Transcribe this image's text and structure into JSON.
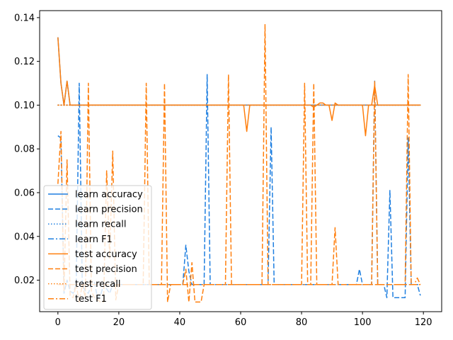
{
  "chart_data": {
    "type": "line",
    "title": "",
    "xlabel": "",
    "ylabel": "",
    "xlim": [
      -6,
      126
    ],
    "ylim": [
      0.0056,
      0.1432
    ],
    "x_ticks": [
      0,
      20,
      40,
      60,
      80,
      100,
      120
    ],
    "x_tick_labels": [
      "0",
      "20",
      "40",
      "60",
      "80",
      "100",
      "120"
    ],
    "y_ticks": [
      0.02,
      0.04,
      0.06,
      0.08,
      0.1,
      0.12,
      0.14
    ],
    "y_tick_labels": [
      "0.02",
      "0.04",
      "0.06",
      "0.08",
      "0.10",
      "0.12",
      "0.14"
    ],
    "grid": false,
    "legend_position": "lower-left",
    "colors": {
      "learn": "#1f7fe0",
      "test": "#ff7f0e"
    },
    "series": [
      {
        "name": "learn accuracy",
        "group": "learn",
        "style": "solid",
        "values": [
          0.131,
          0.11,
          0.1,
          0.111,
          0.1,
          0.1,
          0.1,
          0.1,
          0.1,
          0.1,
          0.1,
          0.1,
          0.1,
          0.1,
          0.1,
          0.1,
          0.1,
          0.1,
          0.1,
          0.1,
          0.1,
          0.1,
          0.1,
          0.1,
          0.1,
          0.1,
          0.1,
          0.1,
          0.1,
          0.1,
          0.1,
          0.1,
          0.1,
          0.1,
          0.1,
          0.1,
          0.1,
          0.1,
          0.1,
          0.1,
          0.1,
          0.1,
          0.1,
          0.1,
          0.1,
          0.1,
          0.1,
          0.1,
          0.1,
          0.1,
          0.1,
          0.1,
          0.1,
          0.1,
          0.1,
          0.1,
          0.1,
          0.1,
          0.1,
          0.1,
          0.1,
          0.1,
          0.1,
          0.1,
          0.1,
          0.1,
          0.1,
          0.1,
          0.1,
          0.1,
          0.1,
          0.1,
          0.1,
          0.1,
          0.1,
          0.1,
          0.1,
          0.1,
          0.1,
          0.1,
          0.1,
          0.1,
          0.1,
          0.1,
          0.1,
          0.1,
          0.1,
          0.1,
          0.1,
          0.1,
          0.1,
          0.1,
          0.1,
          0.1,
          0.1,
          0.1,
          0.1,
          0.1,
          0.1,
          0.1,
          0.1,
          0.1,
          0.1,
          0.1,
          0.1,
          0.1,
          0.1,
          0.1,
          0.1,
          0.1,
          0.1,
          0.1,
          0.1,
          0.1,
          0.1,
          0.1,
          0.1,
          0.1,
          0.1,
          0.1
        ]
      },
      {
        "name": "learn precision",
        "group": "learn",
        "style": "dashed",
        "values": [
          0.086,
          0.085,
          0.014,
          0.02,
          0.015,
          0.014,
          0.018,
          0.11,
          0.018,
          0.015,
          0.014,
          0.018,
          0.019,
          0.012,
          0.013,
          0.018,
          0.016,
          0.014,
          0.018,
          0.018,
          0.018,
          0.018,
          0.018,
          0.018,
          0.018,
          0.018,
          0.018,
          0.018,
          0.018,
          0.018,
          0.018,
          0.018,
          0.018,
          0.018,
          0.018,
          0.018,
          0.018,
          0.018,
          0.018,
          0.018,
          0.018,
          0.018,
          0.036,
          0.024,
          0.018,
          0.018,
          0.018,
          0.018,
          0.018,
          0.114,
          0.018,
          0.018,
          0.018,
          0.018,
          0.018,
          0.018,
          0.018,
          0.018,
          0.018,
          0.018,
          0.018,
          0.018,
          0.018,
          0.018,
          0.018,
          0.018,
          0.018,
          0.018,
          0.018,
          0.018,
          0.09,
          0.018,
          0.018,
          0.018,
          0.018,
          0.018,
          0.018,
          0.018,
          0.018,
          0.018,
          0.018,
          0.018,
          0.018,
          0.018,
          0.018,
          0.018,
          0.018,
          0.018,
          0.018,
          0.018,
          0.018,
          0.018,
          0.018,
          0.018,
          0.018,
          0.018,
          0.018,
          0.018,
          0.018,
          0.025,
          0.018,
          0.018,
          0.018,
          0.018,
          0.111,
          0.018,
          0.018,
          0.018,
          0.012,
          0.061,
          0.012,
          0.012,
          0.012,
          0.012,
          0.012,
          0.085,
          0.018,
          0.018,
          0.018,
          0.013
        ]
      },
      {
        "name": "learn recall",
        "group": "learn",
        "style": "dotted",
        "values": [
          0.1,
          0.1,
          0.1,
          0.1,
          0.1,
          0.1,
          0.1,
          0.1,
          0.1,
          0.1,
          0.1,
          0.1,
          0.1,
          0.1,
          0.1,
          0.1,
          0.1,
          0.1,
          0.1,
          0.1,
          0.1,
          0.1,
          0.1,
          0.1,
          0.1,
          0.1,
          0.1,
          0.1,
          0.1,
          0.1,
          0.1,
          0.1,
          0.1,
          0.1,
          0.1,
          0.1,
          0.1,
          0.1,
          0.1,
          0.1,
          0.1,
          0.1,
          0.1,
          0.1,
          0.1,
          0.1,
          0.1,
          0.1,
          0.1,
          0.1,
          0.1,
          0.1,
          0.1,
          0.1,
          0.1,
          0.1,
          0.1,
          0.1,
          0.1,
          0.1,
          0.1,
          0.1,
          0.1,
          0.1,
          0.1,
          0.1,
          0.1,
          0.1,
          0.1,
          0.1,
          0.1,
          0.1,
          0.1,
          0.1,
          0.1,
          0.1,
          0.1,
          0.1,
          0.1,
          0.1,
          0.1,
          0.1,
          0.1,
          0.1,
          0.1,
          0.1,
          0.1,
          0.1,
          0.1,
          0.1,
          0.1,
          0.1,
          0.1,
          0.1,
          0.1,
          0.1,
          0.1,
          0.1,
          0.1,
          0.1,
          0.1,
          0.1,
          0.1,
          0.1,
          0.1,
          0.1,
          0.1,
          0.1,
          0.1,
          0.1,
          0.1,
          0.1,
          0.1,
          0.1,
          0.1,
          0.1,
          0.1,
          0.1,
          0.1,
          0.1
        ]
      },
      {
        "name": "learn F1",
        "group": "learn",
        "style": "dashdot",
        "values": [
          0.018,
          0.018,
          0.018,
          0.018,
          0.018,
          0.018,
          0.018,
          0.018,
          0.018,
          0.018,
          0.018,
          0.018,
          0.018,
          0.018,
          0.018,
          0.018,
          0.018,
          0.018,
          0.018,
          0.018,
          0.018,
          0.018,
          0.018,
          0.018,
          0.018,
          0.018,
          0.018,
          0.018,
          0.018,
          0.018,
          0.018,
          0.018,
          0.018,
          0.018,
          0.018,
          0.018,
          0.018,
          0.018,
          0.018,
          0.018,
          0.018,
          0.018,
          0.018,
          0.018,
          0.018,
          0.018,
          0.018,
          0.018,
          0.018,
          0.018,
          0.018,
          0.018,
          0.018,
          0.018,
          0.018,
          0.018,
          0.018,
          0.018,
          0.018,
          0.018,
          0.018,
          0.018,
          0.018,
          0.018,
          0.018,
          0.018,
          0.018,
          0.018,
          0.018,
          0.018,
          0.018,
          0.018,
          0.018,
          0.018,
          0.018,
          0.018,
          0.018,
          0.018,
          0.018,
          0.018,
          0.018,
          0.018,
          0.018,
          0.018,
          0.018,
          0.018,
          0.018,
          0.018,
          0.018,
          0.018,
          0.018,
          0.018,
          0.018,
          0.018,
          0.018,
          0.018,
          0.018,
          0.018,
          0.018,
          0.018,
          0.018,
          0.018,
          0.018,
          0.018,
          0.018,
          0.018,
          0.018,
          0.018,
          0.018,
          0.018,
          0.018,
          0.018,
          0.018,
          0.018,
          0.018,
          0.018,
          0.018,
          0.018,
          0.018,
          0.018
        ]
      },
      {
        "name": "test accuracy",
        "group": "test",
        "style": "solid",
        "values": [
          0.131,
          0.11,
          0.1,
          0.111,
          0.1,
          0.1,
          0.1,
          0.1,
          0.1,
          0.1,
          0.1,
          0.1,
          0.1,
          0.1,
          0.1,
          0.1,
          0.1,
          0.1,
          0.1,
          0.1,
          0.1,
          0.1,
          0.1,
          0.1,
          0.1,
          0.1,
          0.1,
          0.1,
          0.1,
          0.1,
          0.1,
          0.1,
          0.1,
          0.1,
          0.1,
          0.1,
          0.1,
          0.1,
          0.1,
          0.1,
          0.1,
          0.1,
          0.1,
          0.1,
          0.1,
          0.1,
          0.1,
          0.1,
          0.1,
          0.1,
          0.1,
          0.1,
          0.1,
          0.1,
          0.1,
          0.1,
          0.1,
          0.1,
          0.1,
          0.1,
          0.1,
          0.1,
          0.088,
          0.1,
          0.1,
          0.1,
          0.1,
          0.1,
          0.1,
          0.1,
          0.1,
          0.1,
          0.1,
          0.1,
          0.1,
          0.1,
          0.1,
          0.1,
          0.1,
          0.1,
          0.1,
          0.1,
          0.1,
          0.1,
          0.099,
          0.1,
          0.101,
          0.101,
          0.1,
          0.1,
          0.093,
          0.101,
          0.1,
          0.1,
          0.1,
          0.1,
          0.1,
          0.1,
          0.1,
          0.1,
          0.1,
          0.086,
          0.1,
          0.1,
          0.109,
          0.1,
          0.1,
          0.1,
          0.1,
          0.1,
          0.1,
          0.1,
          0.1,
          0.1,
          0.1,
          0.1,
          0.1,
          0.1,
          0.1,
          0.1
        ]
      },
      {
        "name": "test precision",
        "group": "test",
        "style": "dashed",
        "values": [
          0.064,
          0.088,
          0.015,
          0.075,
          0.013,
          0.012,
          0.018,
          0.01,
          0.018,
          0.012,
          0.11,
          0.015,
          0.012,
          0.011,
          0.01,
          0.01,
          0.07,
          0.03,
          0.079,
          0.011,
          0.018,
          0.018,
          0.018,
          0.018,
          0.018,
          0.018,
          0.018,
          0.018,
          0.018,
          0.11,
          0.018,
          0.018,
          0.018,
          0.018,
          0.018,
          0.11,
          0.01,
          0.018,
          0.018,
          0.018,
          0.018,
          0.018,
          0.025,
          0.01,
          0.028,
          0.01,
          0.01,
          0.01,
          0.018,
          0.018,
          0.018,
          0.018,
          0.018,
          0.018,
          0.018,
          0.018,
          0.114,
          0.018,
          0.018,
          0.018,
          0.018,
          0.018,
          0.018,
          0.018,
          0.018,
          0.018,
          0.018,
          0.018,
          0.137,
          0.018,
          0.018,
          0.018,
          0.018,
          0.018,
          0.018,
          0.018,
          0.018,
          0.018,
          0.018,
          0.018,
          0.018,
          0.11,
          0.018,
          0.018,
          0.11,
          0.018,
          0.018,
          0.018,
          0.018,
          0.018,
          0.018,
          0.044,
          0.018,
          0.018,
          0.018,
          0.018,
          0.018,
          0.018,
          0.018,
          0.018,
          0.018,
          0.018,
          0.018,
          0.018,
          0.111,
          0.018,
          0.018,
          0.018,
          0.018,
          0.018,
          0.018,
          0.018,
          0.018,
          0.018,
          0.018,
          0.114,
          0.018,
          0.018,
          0.018,
          0.018
        ]
      },
      {
        "name": "test recall",
        "group": "test",
        "style": "dotted",
        "values": [
          0.1,
          0.1,
          0.1,
          0.1,
          0.1,
          0.1,
          0.1,
          0.1,
          0.1,
          0.1,
          0.1,
          0.1,
          0.1,
          0.1,
          0.1,
          0.1,
          0.1,
          0.1,
          0.1,
          0.1,
          0.1,
          0.1,
          0.1,
          0.1,
          0.1,
          0.1,
          0.1,
          0.1,
          0.1,
          0.1,
          0.1,
          0.1,
          0.1,
          0.1,
          0.1,
          0.1,
          0.1,
          0.1,
          0.1,
          0.1,
          0.1,
          0.1,
          0.1,
          0.1,
          0.1,
          0.1,
          0.1,
          0.1,
          0.1,
          0.1,
          0.1,
          0.1,
          0.1,
          0.1,
          0.1,
          0.1,
          0.1,
          0.1,
          0.1,
          0.1,
          0.1,
          0.1,
          0.1,
          0.1,
          0.1,
          0.1,
          0.1,
          0.1,
          0.1,
          0.1,
          0.1,
          0.1,
          0.1,
          0.1,
          0.1,
          0.1,
          0.1,
          0.1,
          0.1,
          0.1,
          0.1,
          0.1,
          0.1,
          0.1,
          0.1,
          0.1,
          0.1,
          0.1,
          0.1,
          0.1,
          0.1,
          0.1,
          0.1,
          0.1,
          0.1,
          0.1,
          0.1,
          0.1,
          0.1,
          0.1,
          0.1,
          0.1,
          0.1,
          0.1,
          0.1,
          0.1,
          0.1,
          0.1,
          0.1,
          0.1,
          0.1,
          0.1,
          0.1,
          0.1,
          0.1,
          0.1,
          0.1,
          0.1,
          0.1,
          0.1
        ]
      },
      {
        "name": "test F1",
        "group": "test",
        "style": "dashdot",
        "values": [
          0.018,
          0.018,
          0.018,
          0.018,
          0.018,
          0.018,
          0.018,
          0.018,
          0.018,
          0.018,
          0.018,
          0.018,
          0.018,
          0.018,
          0.018,
          0.018,
          0.018,
          0.018,
          0.018,
          0.018,
          0.018,
          0.018,
          0.018,
          0.018,
          0.018,
          0.018,
          0.018,
          0.018,
          0.018,
          0.018,
          0.018,
          0.018,
          0.018,
          0.018,
          0.018,
          0.018,
          0.018,
          0.018,
          0.018,
          0.018,
          0.018,
          0.018,
          0.018,
          0.018,
          0.018,
          0.018,
          0.018,
          0.018,
          0.018,
          0.018,
          0.018,
          0.018,
          0.018,
          0.018,
          0.018,
          0.018,
          0.018,
          0.018,
          0.018,
          0.018,
          0.018,
          0.018,
          0.018,
          0.018,
          0.018,
          0.018,
          0.018,
          0.018,
          0.018,
          0.018,
          0.018,
          0.018,
          0.018,
          0.018,
          0.018,
          0.018,
          0.018,
          0.018,
          0.018,
          0.018,
          0.018,
          0.018,
          0.018,
          0.018,
          0.018,
          0.018,
          0.018,
          0.018,
          0.018,
          0.018,
          0.018,
          0.018,
          0.018,
          0.018,
          0.018,
          0.018,
          0.018,
          0.018,
          0.018,
          0.018,
          0.018,
          0.018,
          0.018,
          0.018,
          0.018,
          0.018,
          0.018,
          0.018,
          0.018,
          0.018,
          0.018,
          0.018,
          0.018,
          0.018,
          0.018,
          0.018,
          0.018,
          0.018,
          0.021,
          0.018
        ]
      }
    ]
  }
}
